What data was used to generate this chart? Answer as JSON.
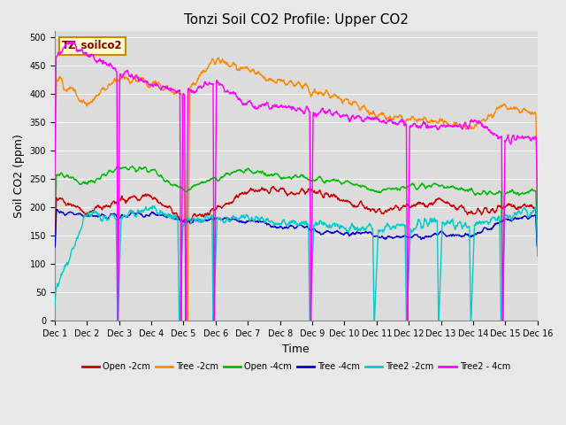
{
  "title": "Tonzi Soil CO2 Profile: Upper CO2",
  "xlabel": "Time",
  "ylabel": "Soil CO2 (ppm)",
  "ylim": [
    0,
    510
  ],
  "yticks": [
    0,
    50,
    100,
    150,
    200,
    250,
    300,
    350,
    400,
    450,
    500
  ],
  "fig_bg_color": "#e8e8e8",
  "plot_bg_color": "#dcdcdc",
  "legend_label": "TZ_soilco2",
  "legend_box_facecolor": "#ffffcc",
  "legend_box_edgecolor": "#cc8800",
  "series_colors": {
    "open_2cm": "#cc0000",
    "tree_2cm": "#ff8800",
    "open_4cm": "#00bb00",
    "tree_4cm": "#0000cc",
    "tree2_2cm": "#00cccc",
    "tree2_4cm": "#ff00ff"
  },
  "series_labels": {
    "open_2cm": "Open -2cm",
    "tree_2cm": "Tree -2cm",
    "open_4cm": "Open -4cm",
    "tree_4cm": "Tree -4cm",
    "tree2_2cm": "Tree2 -2cm",
    "tree2_4cm": "Tree2 - 4cm"
  },
  "x_tick_labels": [
    "Dec 1",
    "Dec 2",
    "Dec 3",
    "Dec 4",
    "Dec 5",
    "Dec 6",
    "Dec 7",
    "Dec 8",
    "Dec 9",
    "Dec 10",
    "Dec 11",
    "Dec 12",
    "Dec 13",
    "Dec 14",
    "Dec 15",
    "Dec 16"
  ],
  "num_days": 15,
  "pts_per_day": 96,
  "title_fontsize": 11,
  "axis_label_fontsize": 9,
  "tick_fontsize": 7,
  "line_width": 1.0
}
